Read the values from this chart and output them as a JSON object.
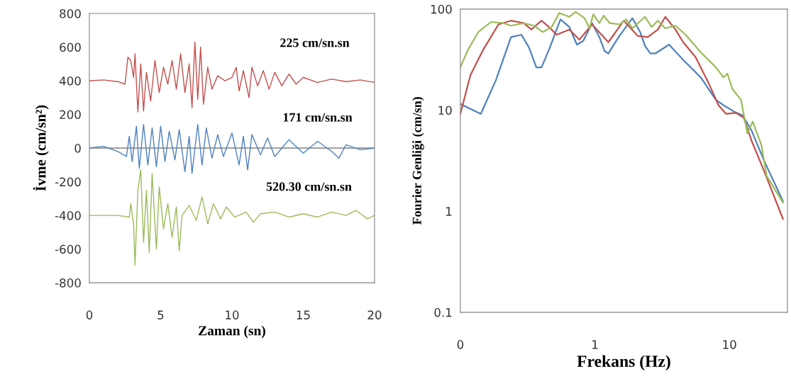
{
  "chart_data": [
    {
      "type": "line",
      "xlabel": "Zaman (sn)",
      "ylabel": "İvme (cm/sn²)",
      "xlim": [
        0,
        20
      ],
      "ylim": [
        -800,
        800
      ],
      "xticks": [
        0,
        5,
        10,
        15,
        20
      ],
      "yticks": [
        -800,
        -600,
        -400,
        -200,
        0,
        200,
        400,
        600,
        800
      ],
      "grid": false,
      "legend": false,
      "marker": "none",
      "line_style": "solid",
      "ref_lines": [
        {
          "axis": "y",
          "value": 0,
          "color": "#808080"
        }
      ],
      "annotations": [
        "225 cm/sn.sn",
        "171 cm/sn.sn",
        "520.30 cm/sn.sn"
      ],
      "series": [
        {
          "color": "#c0504d",
          "x": [
            0,
            1,
            2,
            2.5,
            2.7,
            2.9,
            3.1,
            3.2,
            3.4,
            3.6,
            3.8,
            4.0,
            4.3,
            4.6,
            4.9,
            5.2,
            5.5,
            5.8,
            6.1,
            6.4,
            6.7,
            7.0,
            7.2,
            7.4,
            7.6,
            7.8,
            8.0,
            8.3,
            8.6,
            9.0,
            9.5,
            10.0,
            10.3,
            10.5,
            10.8,
            11.2,
            11.4,
            11.8,
            12.2,
            12.6,
            13.0,
            13.5,
            14.0,
            14.5,
            15.0,
            16,
            17,
            18,
            19,
            20
          ],
          "values": [
            400,
            405,
            395,
            380,
            540,
            520,
            420,
            560,
            215,
            500,
            220,
            450,
            280,
            520,
            330,
            480,
            380,
            520,
            350,
            560,
            330,
            500,
            240,
            630,
            290,
            600,
            260,
            480,
            350,
            430,
            400,
            420,
            480,
            340,
            460,
            300,
            480,
            370,
            460,
            350,
            450,
            370,
            440,
            380,
            420,
            390,
            410,
            395,
            405,
            390
          ]
        },
        {
          "color": "#4f81bd",
          "x": [
            0,
            1,
            2,
            2.6,
            2.8,
            3.0,
            3.3,
            3.5,
            3.8,
            4.1,
            4.4,
            4.7,
            5.0,
            5.3,
            5.6,
            6.0,
            6.3,
            6.7,
            7.0,
            7.2,
            7.6,
            7.9,
            8.2,
            8.6,
            9.0,
            9.4,
            10.0,
            10.5,
            10.8,
            11.1,
            11.4,
            12.0,
            12.5,
            13.0,
            14,
            15,
            16,
            17,
            17.5,
            18,
            19,
            20
          ],
          "values": [
            0,
            10,
            -20,
            -50,
            70,
            -80,
            130,
            -120,
            140,
            -100,
            120,
            -110,
            130,
            -80,
            100,
            -70,
            110,
            -140,
            70,
            -150,
            140,
            -100,
            120,
            -60,
            80,
            -50,
            90,
            -100,
            70,
            -130,
            80,
            -40,
            60,
            -50,
            50,
            -30,
            40,
            -20,
            -60,
            20,
            -10,
            0
          ]
        },
        {
          "color": "#9bbb59",
          "x": [
            0,
            2,
            2.8,
            2.9,
            3.1,
            3.2,
            3.4,
            3.6,
            3.8,
            4.0,
            4.2,
            4.4,
            4.7,
            4.9,
            5.2,
            5.5,
            5.8,
            6.1,
            6.3,
            6.5,
            7.0,
            7.5,
            7.9,
            8.3,
            8.7,
            9.2,
            9.6,
            10.2,
            11,
            11.5,
            12,
            13,
            14,
            15,
            16,
            17,
            18,
            18.7,
            19.5,
            20
          ],
          "values": [
            -400,
            -400,
            -410,
            -330,
            -450,
            -695,
            -250,
            -130,
            -560,
            -250,
            -620,
            -150,
            -600,
            -230,
            -480,
            -330,
            -530,
            -350,
            -610,
            -400,
            -340,
            -430,
            -290,
            -450,
            -330,
            -420,
            -350,
            -410,
            -380,
            -440,
            -390,
            -380,
            -410,
            -390,
            -410,
            -380,
            -400,
            -370,
            -420,
            -400
          ]
        }
      ]
    },
    {
      "type": "line",
      "xlabel": "Frekans (Hz)",
      "ylabel": "Fourier Genliği (cm/sn)",
      "log": "xy",
      "xlim": [
        0.1,
        27
      ],
      "ylim": [
        0.1,
        100
      ],
      "xticks": [
        {
          "value": 0.1,
          "label": "0"
        },
        1,
        10
      ],
      "yticks": [
        0.1,
        1,
        10,
        100
      ],
      "grid": false,
      "legend": false,
      "marker": "none",
      "line_style": "solid",
      "series": [
        {
          "color": "#4f81bd",
          "x": [
            0.1,
            0.142,
            0.184,
            0.238,
            0.284,
            0.323,
            0.367,
            0.401,
            0.456,
            0.555,
            0.646,
            0.735,
            0.819,
            0.953,
            1.08,
            1.18,
            1.26,
            1.5,
            1.9,
            2.17,
            2.36,
            2.58,
            2.81,
            3.56,
            4.53,
            6.12,
            7.94,
            9.04,
            10.8,
            12.5,
            14.6,
            18.1,
            25
          ],
          "values": [
            11.5,
            9.2,
            19.9,
            52.8,
            55.8,
            42,
            26.5,
            26.5,
            39.7,
            79,
            66.5,
            44.5,
            48.5,
            72.6,
            52.8,
            38.5,
            36.4,
            52.8,
            81.4,
            59.3,
            43.2,
            36.4,
            36.4,
            44.5,
            31.5,
            21.1,
            12.6,
            11.2,
            9.7,
            8.9,
            6.3,
            3.16,
            1.26
          ]
        },
        {
          "color": "#c0504d",
          "x": [
            0.1,
            0.119,
            0.148,
            0.192,
            0.238,
            0.296,
            0.337,
            0.401,
            0.456,
            0.52,
            0.646,
            0.767,
            0.953,
            1.26,
            1.64,
            2.08,
            2.47,
            2.94,
            3.34,
            3.97,
            4.53,
            5.61,
            6.97,
            8.29,
            9.44,
            11.2,
            12.8,
            14.6,
            18.1,
            25
          ],
          "values": [
            9.2,
            22.3,
            39.7,
            70.5,
            76.8,
            72.6,
            62.8,
            76.8,
            66.5,
            55.8,
            62.8,
            49.9,
            70.5,
            47.1,
            76.8,
            54.4,
            52.8,
            62.8,
            83.8,
            62.8,
            47.1,
            33.4,
            18.8,
            11.2,
            9.2,
            9.4,
            8.4,
            5.0,
            2.5,
            0.84
          ]
        },
        {
          "color": "#9bbb59",
          "x": [
            0.1,
            0.114,
            0.136,
            0.169,
            0.209,
            0.238,
            0.296,
            0.352,
            0.41,
            0.477,
            0.543,
            0.646,
            0.719,
            0.837,
            0.912,
            0.973,
            1.08,
            1.16,
            1.29,
            1.53,
            1.71,
            1.9,
            2.36,
            2.64,
            2.94,
            3.34,
            3.97,
            4.72,
            6.12,
            7.94,
            9.04,
            9.66,
            10.5,
            12.2,
            13.6,
            14.9,
            17.3,
            18.9,
            25
          ],
          "values": [
            26.5,
            39.7,
            59.3,
            74.6,
            72.6,
            68.5,
            72.6,
            68.5,
            59.3,
            66.5,
            91.4,
            83.8,
            94,
            81.4,
            64.6,
            88.7,
            72.6,
            86.2,
            72.6,
            70.5,
            79,
            64.6,
            83.8,
            66.5,
            76.8,
            64.6,
            68.5,
            55.8,
            37.4,
            26.5,
            21.1,
            23,
            16.3,
            12.6,
            5.9,
            7.7,
            4.5,
            2.24,
            1.22
          ]
        }
      ]
    }
  ]
}
